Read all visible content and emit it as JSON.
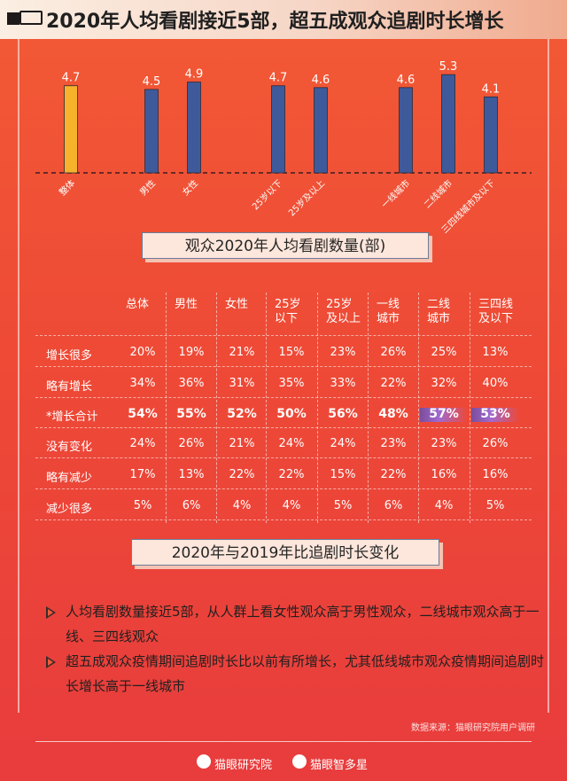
{
  "header": {
    "title": "2020年人均看剧接近5部，超五成观众追剧时长增长"
  },
  "chart_data": {
    "type": "bar",
    "title": "观众2020年人均看剧数量(部)",
    "categories": [
      "整体",
      "男性",
      "女性",
      "25岁以下",
      "25岁及以上",
      "一线城市",
      "二线城市",
      "三四线城市及以下"
    ],
    "values": [
      4.7,
      4.5,
      4.9,
      4.7,
      4.6,
      4.6,
      5.3,
      4.1
    ],
    "colors": [
      "#f7b22c",
      "#3e5a9a",
      "#3e5a9a",
      "#3e5a9a",
      "#3e5a9a",
      "#3e5a9a",
      "#3e5a9a",
      "#3e5a9a"
    ],
    "ylim": [
      0,
      5.5
    ],
    "grid": false,
    "table": {
      "columns": [
        "总体",
        "男性",
        "女性",
        "25岁\n以下",
        "25岁\n及以上",
        "一线\n城市",
        "二线\n城市",
        "三四线\n及以下"
      ],
      "rows": [
        {
          "label": "增长很多",
          "values": [
            "20%",
            "19%",
            "21%",
            "15%",
            "23%",
            "26%",
            "25%",
            "13%"
          ],
          "bold": false
        },
        {
          "label": "略有增长",
          "values": [
            "34%",
            "36%",
            "31%",
            "35%",
            "33%",
            "22%",
            "32%",
            "40%"
          ],
          "bold": false
        },
        {
          "label": "*增长合计",
          "values": [
            "54%",
            "55%",
            "52%",
            "50%",
            "56%",
            "48%",
            "57%",
            "53%"
          ],
          "bold": true
        },
        {
          "label": "没有变化",
          "values": [
            "24%",
            "26%",
            "21%",
            "24%",
            "24%",
            "23%",
            "23%",
            "26%"
          ],
          "bold": false
        },
        {
          "label": "略有减少",
          "values": [
            "17%",
            "13%",
            "22%",
            "22%",
            "15%",
            "22%",
            "16%",
            "16%"
          ],
          "bold": false
        },
        {
          "label": "减少很多",
          "values": [
            "5%",
            "6%",
            "4%",
            "4%",
            "5%",
            "6%",
            "4%",
            "5%"
          ],
          "bold": false
        }
      ],
      "title": "2020年与2019年比追剧时长变化"
    }
  },
  "notes": [
    "人均看剧数量接近5部，从人群上看女性观众高于男性观众，二线城市观众高于一线、三四线观众",
    "超五成观众疫情期间追剧时长比以前有所增长，尤其低线城市观众疫情期间追剧时长增长高于一线城市"
  ],
  "source": "数据来源：猫眼研究院用户调研",
  "footer": {
    "brand_left": "猫眼研究院",
    "brand_right": "猫眼智多星"
  }
}
